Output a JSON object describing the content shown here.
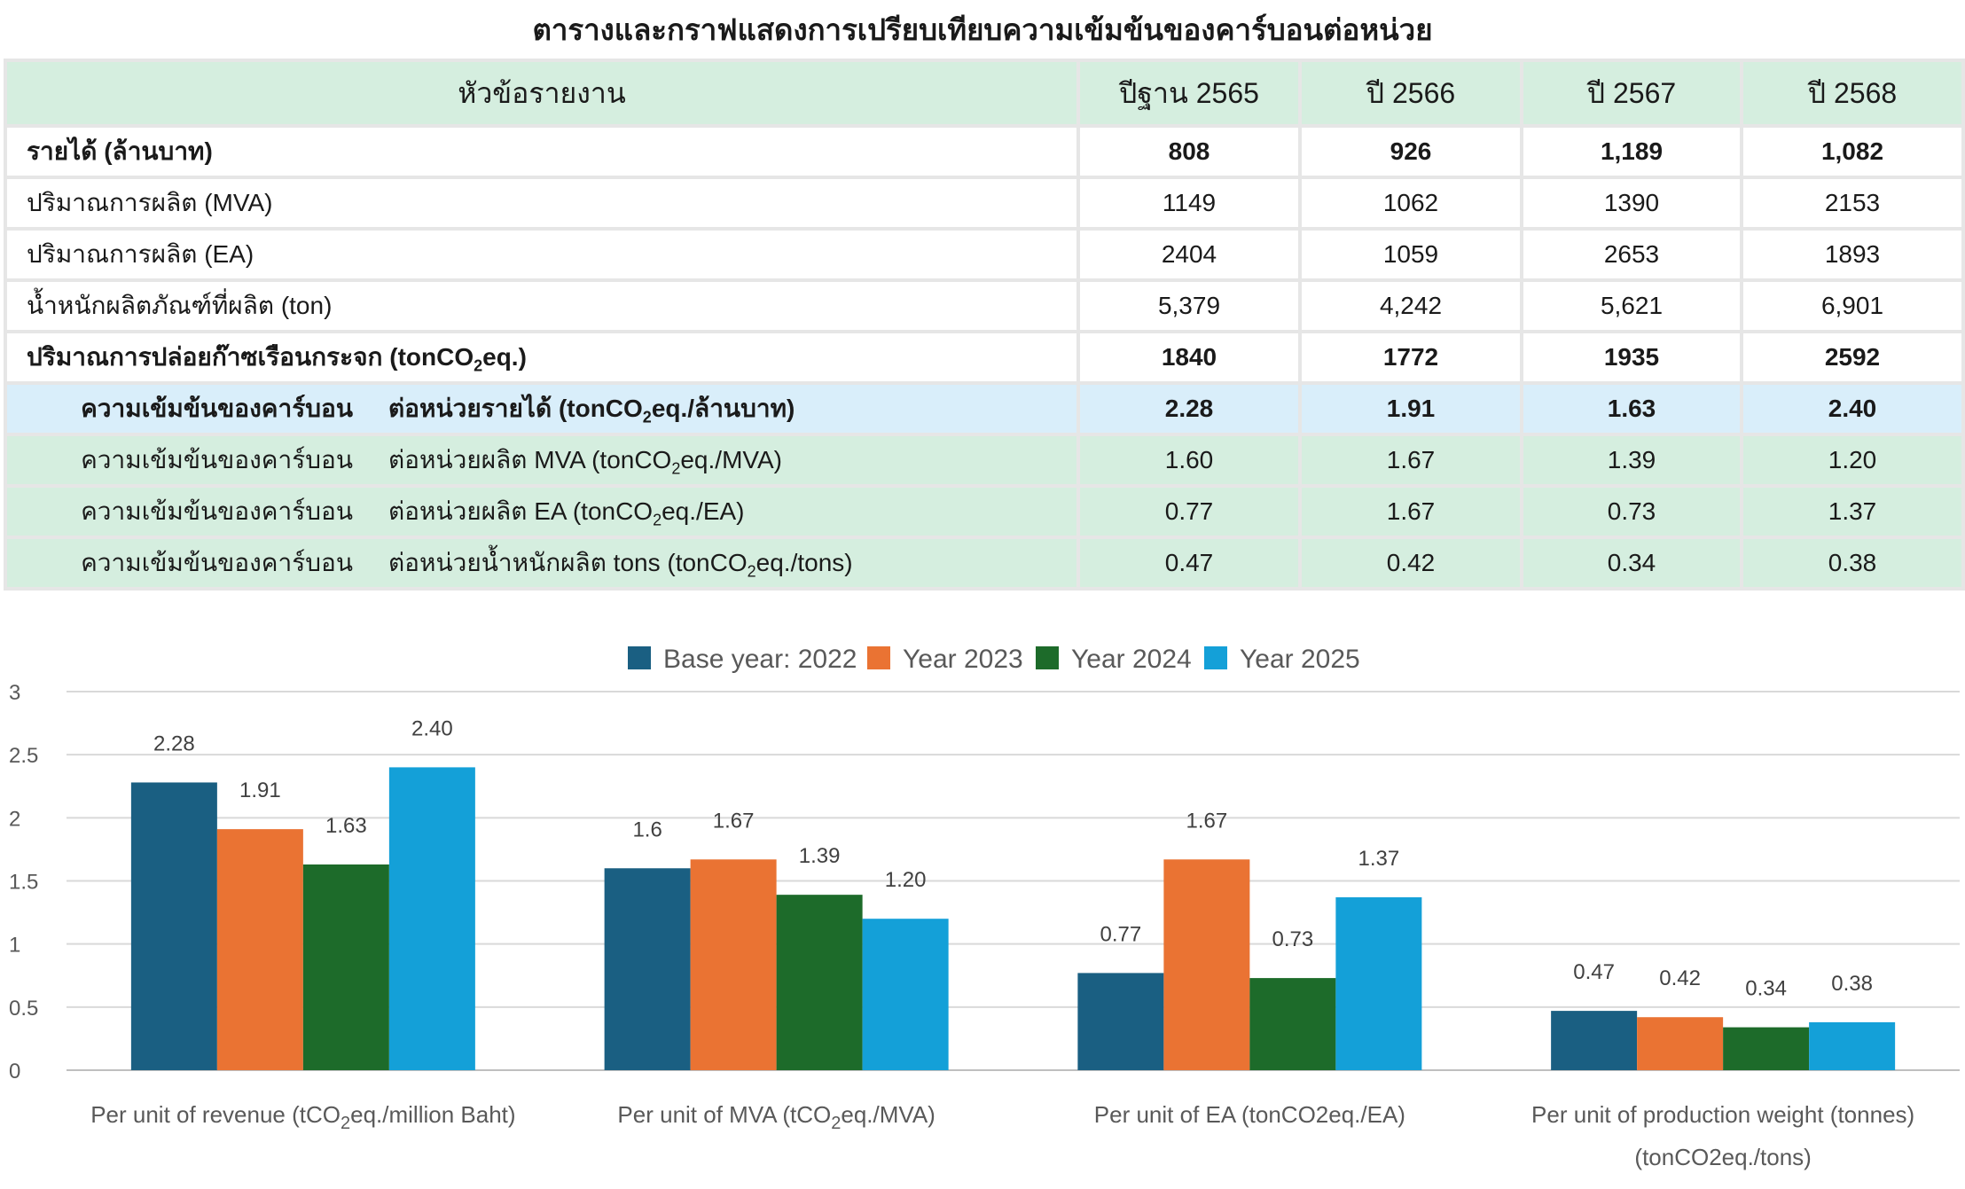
{
  "title": "ตารางและกราฟแสดงการเปรียบเทียบความเข้มข้นของคาร์บอนต่อหน่วย",
  "table": {
    "headers": [
      "หัวข้อรายงาน",
      "ปีฐาน 2565",
      "ปี 2566",
      "ปี 2567",
      "ปี 2568"
    ],
    "rows": [
      {
        "label": "รายได้ (ล้านบาท)",
        "values": [
          "808",
          "926",
          "1,189",
          "1,082"
        ]
      },
      {
        "label": "ปริมาณการผลิต (MVA)",
        "values": [
          "1149",
          "1062",
          "1390",
          "2153"
        ]
      },
      {
        "label": "ปริมาณการผลิต (EA)",
        "values": [
          "2404",
          "1059",
          "2653",
          "1893"
        ]
      },
      {
        "label": "น้ำหนักผลิตภัณฑ์ที่ผลิต (ton)",
        "values": [
          "5,379",
          "4,242",
          "5,621",
          "6,901"
        ]
      },
      {
        "label_pre": "ปริมาณการปล่อยก๊าซเรือนกระจก (tonCO",
        "label_sub": "2",
        "label_post": "eq.)",
        "values": [
          "1840",
          "1772",
          "1935",
          "2592"
        ]
      },
      {
        "category": "ความเข้มข้นของคาร์บอน",
        "unit_pre": "ต่อหน่วยรายได้ (tonCO",
        "unit_sub": "2",
        "unit_post": "eq./ล้านบาท)",
        "values": [
          "2.28",
          "1.91",
          "1.63",
          "2.40"
        ]
      },
      {
        "category": "ความเข้มข้นของคาร์บอน",
        "unit_pre": "ต่อหน่วยผลิต MVA (tonCO",
        "unit_sub": "2",
        "unit_post": "eq./MVA)",
        "values": [
          "1.60",
          "1.67",
          "1.39",
          "1.20"
        ]
      },
      {
        "category": "ความเข้มข้นของคาร์บอน",
        "unit_pre": "ต่อหน่วยผลิต EA (tonCO",
        "unit_sub": "2",
        "unit_post": "eq./EA)",
        "values": [
          "0.77",
          "1.67",
          "0.73",
          "1.37"
        ]
      },
      {
        "category": "ความเข้มข้นของคาร์บอน",
        "unit_pre": "ต่อหน่วยน้ำหนักผลิต tons (tonCO",
        "unit_sub": "2",
        "unit_post": "eq./tons)",
        "values": [
          "0.47",
          "0.42",
          "0.34",
          "0.38"
        ]
      }
    ]
  },
  "colors": {
    "header_bg": "#d5eedf",
    "blue_row_bg": "#d9eefa",
    "green_row_bg": "#d5eedf",
    "grid": "#d9d9d9"
  },
  "chart_data": {
    "type": "bar",
    "legend_position": "top",
    "grid": true,
    "ylim": [
      0,
      3
    ],
    "y_ticks": [
      "0",
      "0.5",
      "1",
      "1.5",
      "2",
      "2.5",
      "3"
    ],
    "categories": [
      {
        "pre": "Per unit of revenue (tCO",
        "sub": "2",
        "post": "eq./million Baht)"
      },
      {
        "pre": "Per unit of MVA (tCO",
        "sub": "2",
        "post": "eq./MVA)"
      },
      {
        "pre": "Per unit of EA (tonCO2eq./EA)",
        "sub": "",
        "post": ""
      },
      {
        "pre": "Per unit of production weight (tonnes)",
        "sub": "",
        "post": "",
        "line2": "(tonCO2eq./tons)"
      }
    ],
    "series": [
      {
        "name": "Base year: 2022",
        "color": "#1a5f82",
        "values": [
          2.28,
          1.6,
          0.77,
          0.47
        ],
        "labels": [
          "2.28",
          "1.6",
          "0.77",
          "0.47"
        ]
      },
      {
        "name": "Year 2023",
        "color": "#ea7333",
        "values": [
          1.91,
          1.67,
          1.67,
          0.42
        ],
        "labels": [
          "1.91",
          "1.67",
          "1.67",
          "0.42"
        ]
      },
      {
        "name": "Year 2024",
        "color": "#1d6b2a",
        "values": [
          1.63,
          1.39,
          0.73,
          0.34
        ],
        "labels": [
          "1.63",
          "1.39",
          "0.73",
          "0.34"
        ]
      },
      {
        "name": "Year 2025",
        "color": "#14a0d8",
        "values": [
          2.4,
          1.2,
          1.37,
          0.38
        ],
        "labels": [
          "2.40",
          "1.20",
          "1.37",
          "0.38"
        ]
      }
    ]
  }
}
